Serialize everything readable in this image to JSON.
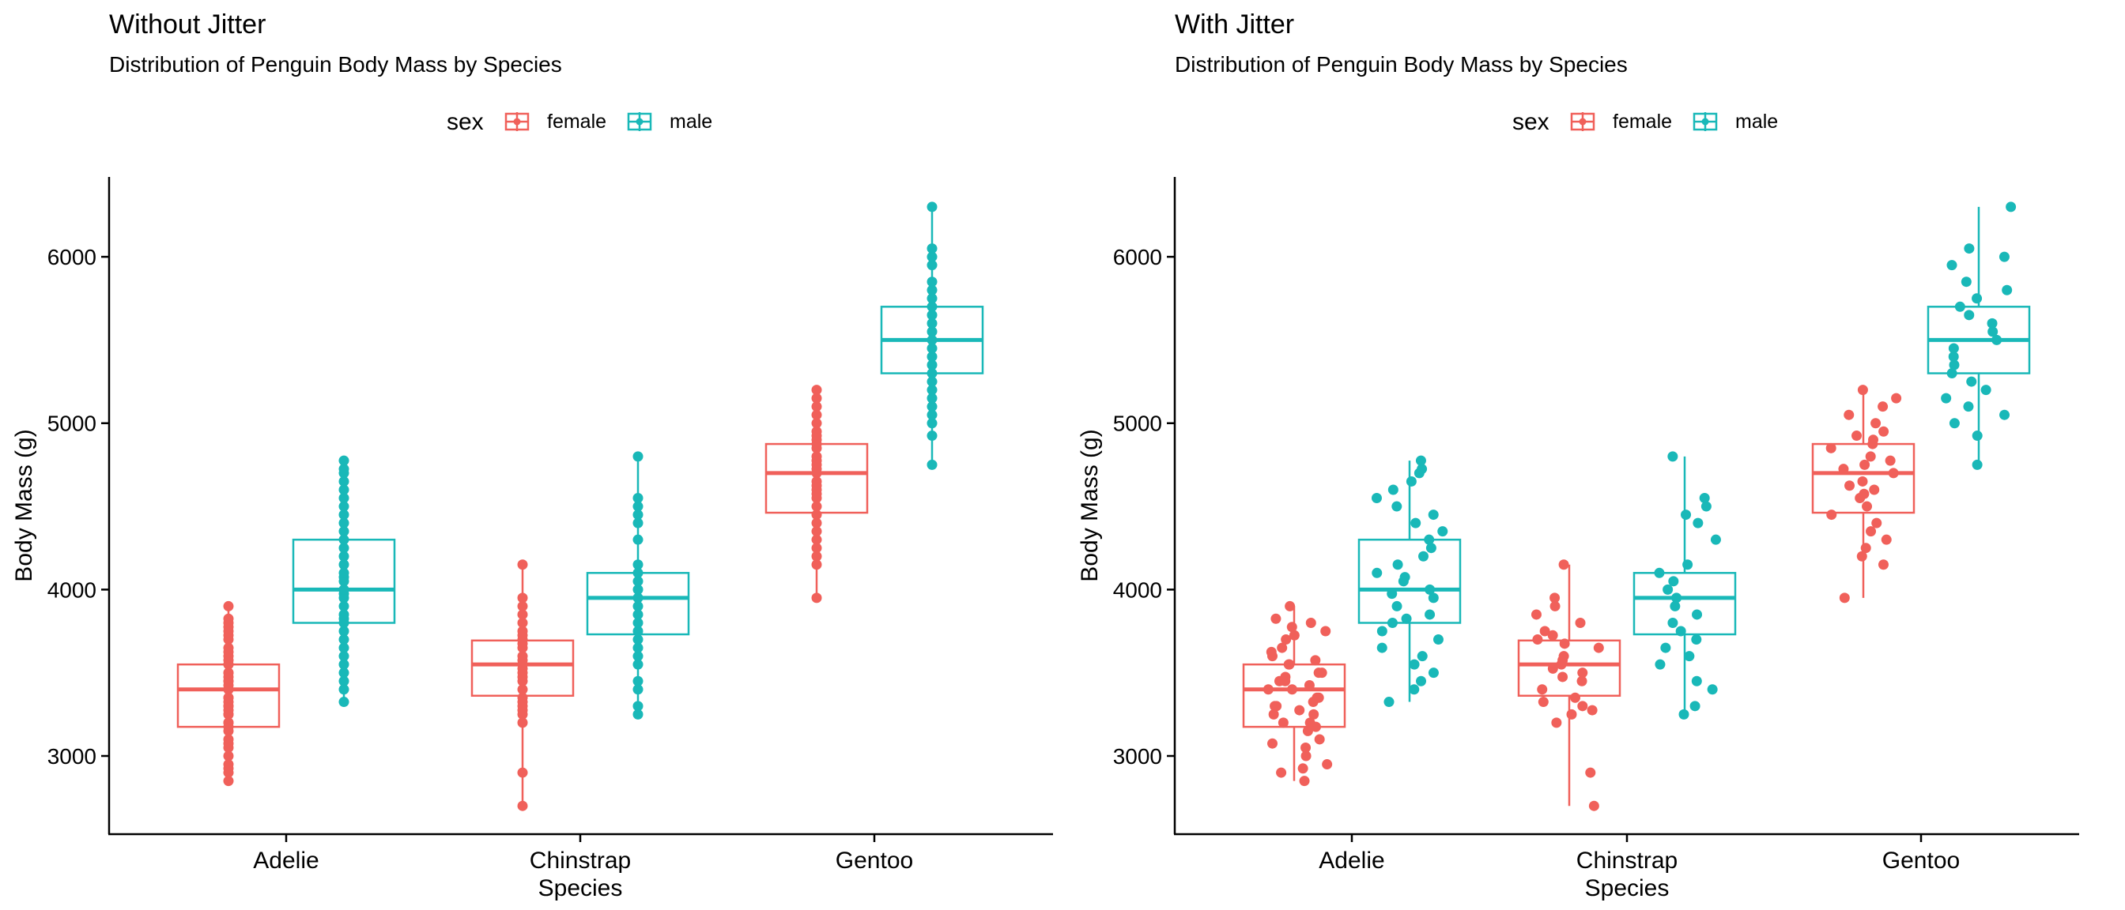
{
  "colors": {
    "female": "#F0605A",
    "male": "#19B8B8",
    "axis": "#000000"
  },
  "chart_data": [
    {
      "type": "boxplot",
      "title": "Without Jitter",
      "subtitle": "Distribution of Penguin Body Mass by Species",
      "xlabel": "Species",
      "ylabel": "Body Mass (g)",
      "ylim": [
        2530,
        6480
      ],
      "yticks": [
        3000,
        4000,
        5000,
        6000
      ],
      "categories": [
        "Adelie",
        "Chinstrap",
        "Gentoo"
      ],
      "legend": {
        "title": "sex",
        "entries": [
          "female",
          "male"
        ],
        "position": "top"
      },
      "jitter": false,
      "series": [
        {
          "name": "female",
          "boxes": [
            {
              "category": "Adelie",
              "min": 2850,
              "q1": 3175,
              "median": 3400,
              "q3": 3550,
              "max": 3900
            },
            {
              "category": "Chinstrap",
              "min": 2700,
              "q1": 3362,
              "median": 3550,
              "q3": 3694,
              "max": 4150
            },
            {
              "category": "Gentoo",
              "min": 3950,
              "q1": 4462,
              "median": 4700,
              "q3": 4875,
              "max": 5200
            }
          ],
          "points": [
            [
              2850,
              2900,
              2925,
              2950,
              3000,
              3050,
              3075,
              3100,
              3150,
              3175,
              3200,
              3200,
              3250,
              3250,
              3275,
              3300,
              3300,
              3325,
              3350,
              3350,
              3400,
              3400,
              3425,
              3450,
              3450,
              3475,
              3500,
              3500,
              3550,
              3550,
              3575,
              3600,
              3625,
              3650,
              3700,
              3725,
              3750,
              3775,
              3800,
              3825,
              3900
            ],
            [
              2700,
              2900,
              3200,
              3250,
              3275,
              3300,
              3325,
              3350,
              3400,
              3450,
              3475,
              3500,
              3525,
              3550,
              3575,
              3600,
              3650,
              3675,
              3700,
              3725,
              3750,
              3800,
              3850,
              3900,
              3950,
              4150
            ],
            [
              3950,
              4150,
              4200,
              4250,
              4300,
              4350,
              4400,
              4450,
              4500,
              4550,
              4575,
              4600,
              4625,
              4650,
              4700,
              4725,
              4750,
              4775,
              4800,
              4850,
              4875,
              4900,
              4925,
              4950,
              5000,
              5050,
              5100,
              5150,
              5200
            ]
          ]
        },
        {
          "name": "male",
          "boxes": [
            {
              "category": "Adelie",
              "min": 3325,
              "q1": 3800,
              "median": 4000,
              "q3": 4300,
              "max": 4775
            },
            {
              "category": "Chinstrap",
              "min": 3250,
              "q1": 3731,
              "median": 3950,
              "q3": 4100,
              "max": 4800
            },
            {
              "category": "Gentoo",
              "min": 4750,
              "q1": 5300,
              "median": 5500,
              "q3": 5700,
              "max": 6300
            }
          ],
          "points": [
            [
              3325,
              3400,
              3450,
              3500,
              3550,
              3600,
              3650,
              3700,
              3750,
              3800,
              3825,
              3850,
              3900,
              3950,
              3975,
              4000,
              4050,
              4075,
              4100,
              4150,
              4200,
              4250,
              4300,
              4350,
              4400,
              4450,
              4500,
              4550,
              4600,
              4650,
              4700,
              4725,
              4775
            ],
            [
              3250,
              3300,
              3400,
              3450,
              3550,
              3600,
              3650,
              3700,
              3750,
              3800,
              3850,
              3900,
              3950,
              4000,
              4050,
              4100,
              4150,
              4300,
              4400,
              4450,
              4500,
              4550,
              4800
            ],
            [
              4750,
              4925,
              5000,
              5050,
              5100,
              5150,
              5200,
              5250,
              5300,
              5350,
              5400,
              5450,
              5500,
              5550,
              5600,
              5650,
              5700,
              5750,
              5800,
              5850,
              5950,
              6000,
              6050,
              6300
            ]
          ]
        }
      ]
    },
    {
      "type": "boxplot",
      "title": "With Jitter",
      "subtitle": "Distribution of Penguin Body Mass by Species",
      "xlabel": "Species",
      "ylabel": "Body Mass (g)",
      "ylim": [
        2530,
        6480
      ],
      "yticks": [
        3000,
        4000,
        5000,
        6000
      ],
      "categories": [
        "Adelie",
        "Chinstrap",
        "Gentoo"
      ],
      "legend": {
        "title": "sex",
        "entries": [
          "female",
          "male"
        ],
        "position": "top"
      },
      "jitter": true,
      "series": [
        {
          "name": "female",
          "boxes": [
            {
              "category": "Adelie",
              "min": 2850,
              "q1": 3175,
              "median": 3400,
              "q3": 3550,
              "max": 3900
            },
            {
              "category": "Chinstrap",
              "min": 2700,
              "q1": 3362,
              "median": 3550,
              "q3": 3694,
              "max": 4150
            },
            {
              "category": "Gentoo",
              "min": 3950,
              "q1": 4462,
              "median": 4700,
              "q3": 4875,
              "max": 5200
            }
          ],
          "points": [
            [
              2850,
              2900,
              2925,
              2950,
              3000,
              3050,
              3075,
              3100,
              3150,
              3175,
              3200,
              3200,
              3250,
              3250,
              3275,
              3300,
              3300,
              3325,
              3350,
              3350,
              3400,
              3400,
              3425,
              3450,
              3450,
              3475,
              3500,
              3500,
              3550,
              3550,
              3575,
              3600,
              3625,
              3650,
              3700,
              3725,
              3750,
              3775,
              3800,
              3825,
              3900
            ],
            [
              2700,
              2900,
              3200,
              3250,
              3275,
              3300,
              3325,
              3350,
              3400,
              3450,
              3475,
              3500,
              3525,
              3550,
              3575,
              3600,
              3650,
              3675,
              3700,
              3725,
              3750,
              3800,
              3850,
              3900,
              3950,
              4150
            ],
            [
              3950,
              4150,
              4200,
              4250,
              4300,
              4350,
              4400,
              4450,
              4500,
              4550,
              4575,
              4600,
              4625,
              4650,
              4700,
              4725,
              4750,
              4775,
              4800,
              4850,
              4875,
              4900,
              4925,
              4950,
              5000,
              5050,
              5100,
              5150,
              5200
            ]
          ]
        },
        {
          "name": "male",
          "boxes": [
            {
              "category": "Adelie",
              "min": 3325,
              "q1": 3800,
              "median": 4000,
              "q3": 4300,
              "max": 4775
            },
            {
              "category": "Chinstrap",
              "min": 3250,
              "q1": 3731,
              "median": 3950,
              "q3": 4100,
              "max": 4800
            },
            {
              "category": "Gentoo",
              "min": 4750,
              "q1": 5300,
              "median": 5500,
              "q3": 5700,
              "max": 6300
            }
          ],
          "points": [
            [
              3325,
              3400,
              3450,
              3500,
              3550,
              3600,
              3650,
              3700,
              3750,
              3800,
              3825,
              3850,
              3900,
              3950,
              3975,
              4000,
              4050,
              4075,
              4100,
              4150,
              4200,
              4250,
              4300,
              4350,
              4400,
              4450,
              4500,
              4550,
              4600,
              4650,
              4700,
              4725,
              4775
            ],
            [
              3250,
              3300,
              3400,
              3450,
              3550,
              3600,
              3650,
              3700,
              3750,
              3800,
              3850,
              3900,
              3950,
              4000,
              4050,
              4100,
              4150,
              4300,
              4400,
              4450,
              4500,
              4550,
              4800
            ],
            [
              4750,
              4925,
              5000,
              5050,
              5100,
              5150,
              5200,
              5250,
              5300,
              5350,
              5400,
              5450,
              5500,
              5550,
              5600,
              5650,
              5700,
              5750,
              5800,
              5850,
              5950,
              6000,
              6050,
              6300
            ]
          ]
        }
      ]
    }
  ]
}
